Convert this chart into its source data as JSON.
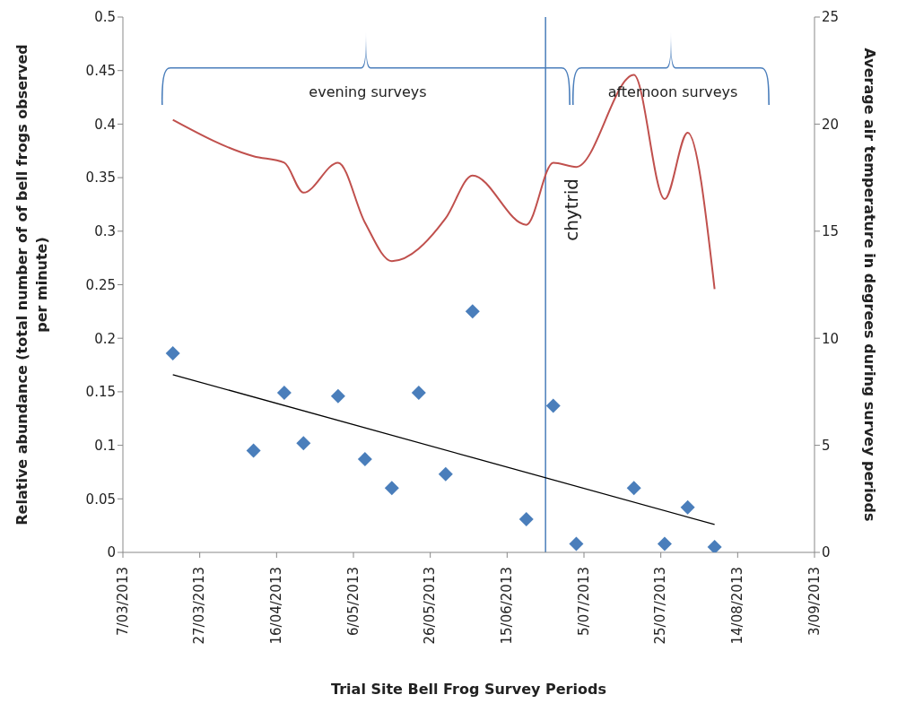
{
  "chart_data": {
    "type": "scatter",
    "xlabel": "Trial Site Bell Frog Survey Periods",
    "ylabel": "Relative abundance (total number of of bell frogs observed per minute)",
    "y2label": "Average air temperature in degrees during survey periods",
    "annotations": [
      "evening surveys",
      "afternoon surveys"
    ],
    "xlim": [
      "2013-03-07",
      "2013-09-03"
    ],
    "xticks": [
      {
        "value": "2013-03-07",
        "label": "7/03/2013"
      },
      {
        "value": "2013-03-27",
        "label": "27/03/2013"
      },
      {
        "value": "2013-04-16",
        "label": "16/04/2013"
      },
      {
        "value": "2013-05-06",
        "label": "6/05/2013"
      },
      {
        "value": "2013-05-26",
        "label": "26/05/2013"
      },
      {
        "value": "2013-06-15",
        "label": "15/06/2013"
      },
      {
        "value": "2013-07-05",
        "label": "5/07/2013"
      },
      {
        "value": "2013-07-25",
        "label": "25/07/2013"
      },
      {
        "value": "2013-08-14",
        "label": "14/08/2013"
      },
      {
        "value": "2013-09-03",
        "label": "3/09/2013"
      }
    ],
    "ylim": [
      0,
      0.5
    ],
    "yticks": [
      0,
      0.05,
      0.1,
      0.15,
      0.2,
      0.25,
      0.3,
      0.35,
      0.4,
      0.45,
      0.5
    ],
    "y2lim": [
      0,
      25
    ],
    "y2ticks": [
      0,
      5,
      10,
      15,
      20,
      25
    ],
    "grid": false,
    "legend": false,
    "ref_lines": [
      {
        "axis": "x",
        "value": "2013-06-25",
        "label": "chytrid",
        "color": "#4a7ebb"
      }
    ],
    "series": [
      {
        "type": "scatter",
        "color": "#4a7ebb",
        "marker": "diamond",
        "x": [
          "2013-03-20",
          "2013-04-10",
          "2013-04-18",
          "2013-04-23",
          "2013-05-02",
          "2013-05-09",
          "2013-05-16",
          "2013-05-23",
          "2013-05-30",
          "2013-06-06",
          "2013-06-20",
          "2013-06-27",
          "2013-07-03",
          "2013-07-18",
          "2013-07-26",
          "2013-08-01",
          "2013-08-08"
        ],
        "values": [
          0.186,
          0.095,
          0.149,
          0.102,
          0.146,
          0.087,
          0.06,
          0.149,
          0.073,
          0.225,
          0.031,
          0.137,
          0.008,
          0.06,
          0.008,
          0.042,
          0.005
        ]
      },
      {
        "type": "line",
        "color": "#c0504d",
        "axis": "y2",
        "marker": "none",
        "x": [
          "2013-03-20",
          "2013-04-10",
          "2013-04-18",
          "2013-04-23",
          "2013-05-02",
          "2013-05-09",
          "2013-05-16",
          "2013-05-30",
          "2013-06-06",
          "2013-06-20",
          "2013-06-27",
          "2013-07-03",
          "2013-07-18",
          "2013-07-26",
          "2013-08-01",
          "2013-08-08"
        ],
        "values": [
          20.2,
          18.5,
          18.2,
          16.8,
          18.2,
          15.4,
          13.6,
          15.6,
          17.6,
          15.3,
          18.2,
          18.0,
          22.3,
          16.5,
          19.6,
          12.3
        ]
      },
      {
        "type": "line",
        "color": "#000000",
        "marker": "none",
        "x": [
          "2013-03-20",
          "2013-08-08"
        ],
        "values": [
          0.166,
          0.026
        ]
      }
    ]
  }
}
